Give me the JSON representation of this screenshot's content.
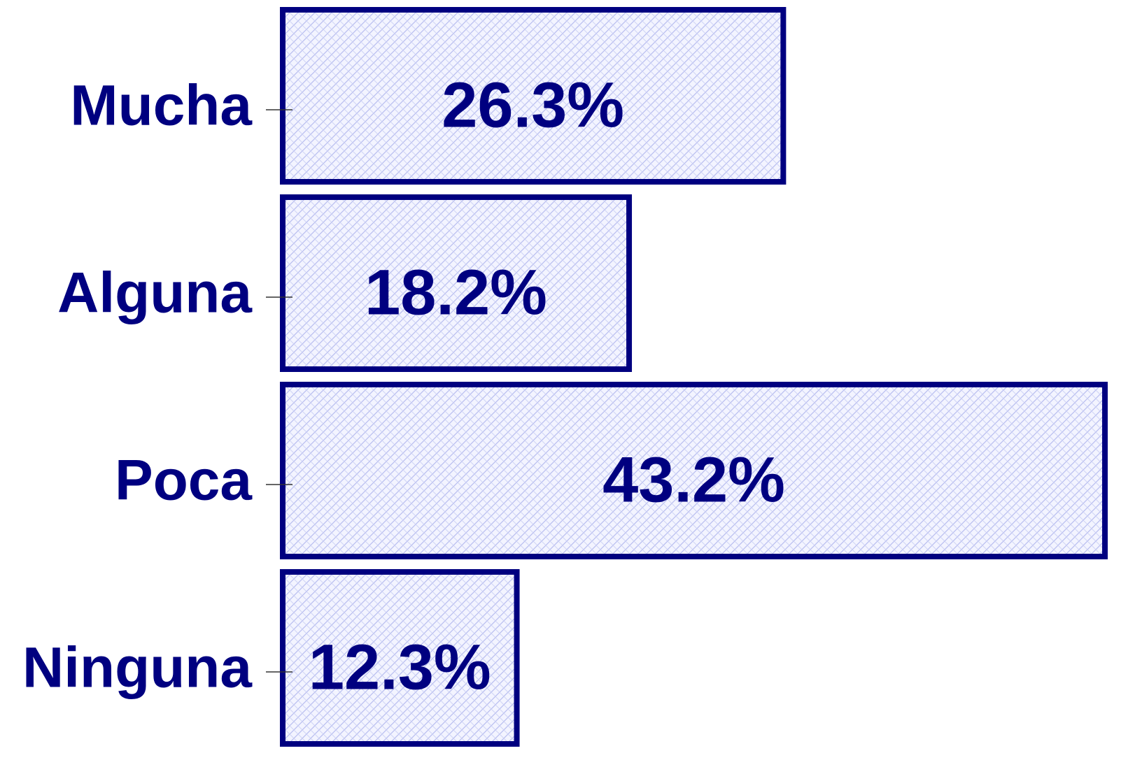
{
  "chart_data": {
    "type": "bar",
    "orientation": "horizontal",
    "categories": [
      "Mucha",
      "Alguna",
      "Poca",
      "Ninguna"
    ],
    "values": [
      26.3,
      18.2,
      43.2,
      12.3
    ],
    "value_labels": [
      "26.3%",
      "18.2%",
      "43.2%",
      "12.3%"
    ],
    "color": "#000080"
  }
}
